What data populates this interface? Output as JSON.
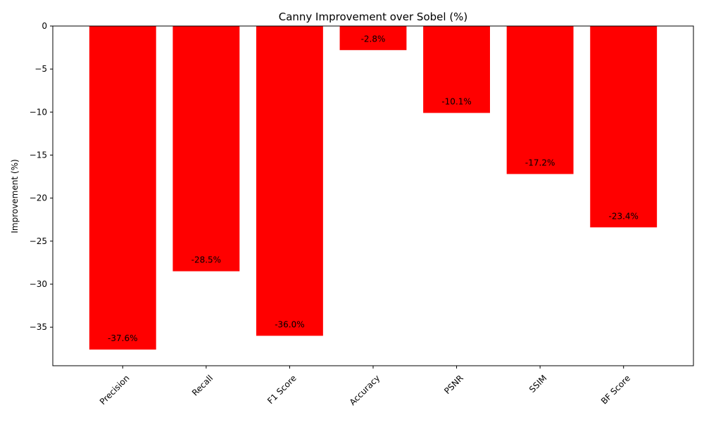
{
  "chart_data": {
    "type": "bar",
    "title": "Canny Improvement over Sobel (%)",
    "xlabel": "",
    "ylabel": "Improvement (%)",
    "categories": [
      "Precision",
      "Recall",
      "F1 Score",
      "Accuracy",
      "PSNR",
      "SSIM",
      "BF Score"
    ],
    "values": [
      -37.6,
      -28.5,
      -36.0,
      -2.8,
      -10.1,
      -17.2,
      -23.4
    ],
    "data_labels": [
      "-37.6%",
      "-28.5%",
      "-36.0%",
      "-2.8%",
      "-10.1%",
      "-17.2%",
      "-23.4%"
    ],
    "ylim": [
      -39.48,
      0
    ],
    "yticks": [
      0,
      -5,
      -10,
      -15,
      -20,
      -25,
      -30,
      -35
    ],
    "ytick_labels": [
      "0",
      "−5",
      "−10",
      "−15",
      "−20",
      "−25",
      "−30",
      "−35"
    ],
    "xtick_rotation": 45,
    "bar_color": "#ff0000",
    "grid": false,
    "legend": null
  }
}
